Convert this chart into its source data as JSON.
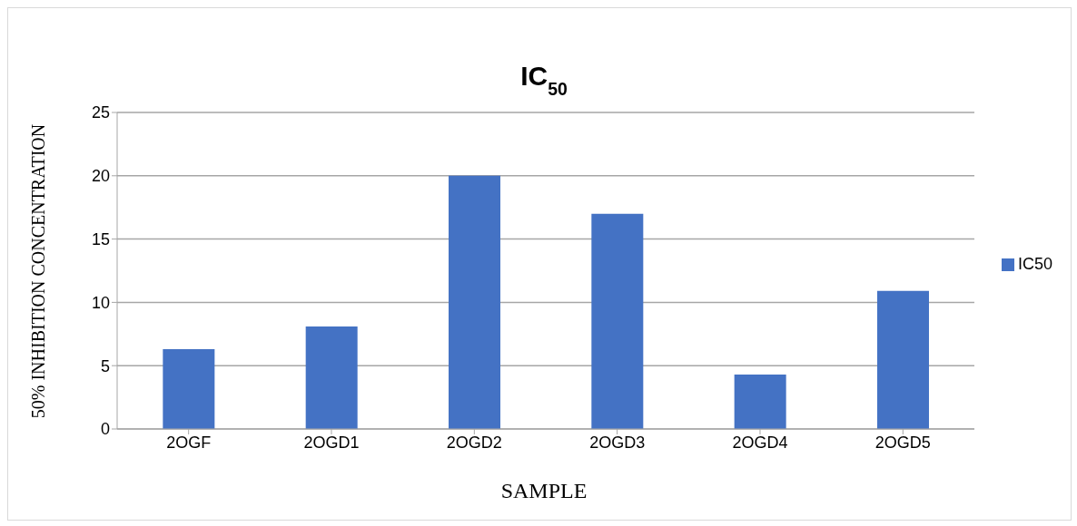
{
  "chart_data": {
    "type": "bar",
    "title": "IC$_{50}$",
    "xlabel": "SAMPLE",
    "ylabel": "50% INHIBITION CONCENTRATION",
    "categories": [
      "2OGF",
      "2OGD1",
      "2OGD2",
      "2OGD3",
      "2OGD4",
      "2OGD5"
    ],
    "series": [
      {
        "name": "IC50",
        "color": "#4472c4",
        "values": [
          6.3,
          8.1,
          20.0,
          17.0,
          4.3,
          10.9
        ]
      }
    ],
    "ylim": [
      0,
      25
    ],
    "yticks": [
      0,
      5,
      10,
      15,
      20,
      25
    ],
    "grid": "y",
    "legend": "right"
  }
}
